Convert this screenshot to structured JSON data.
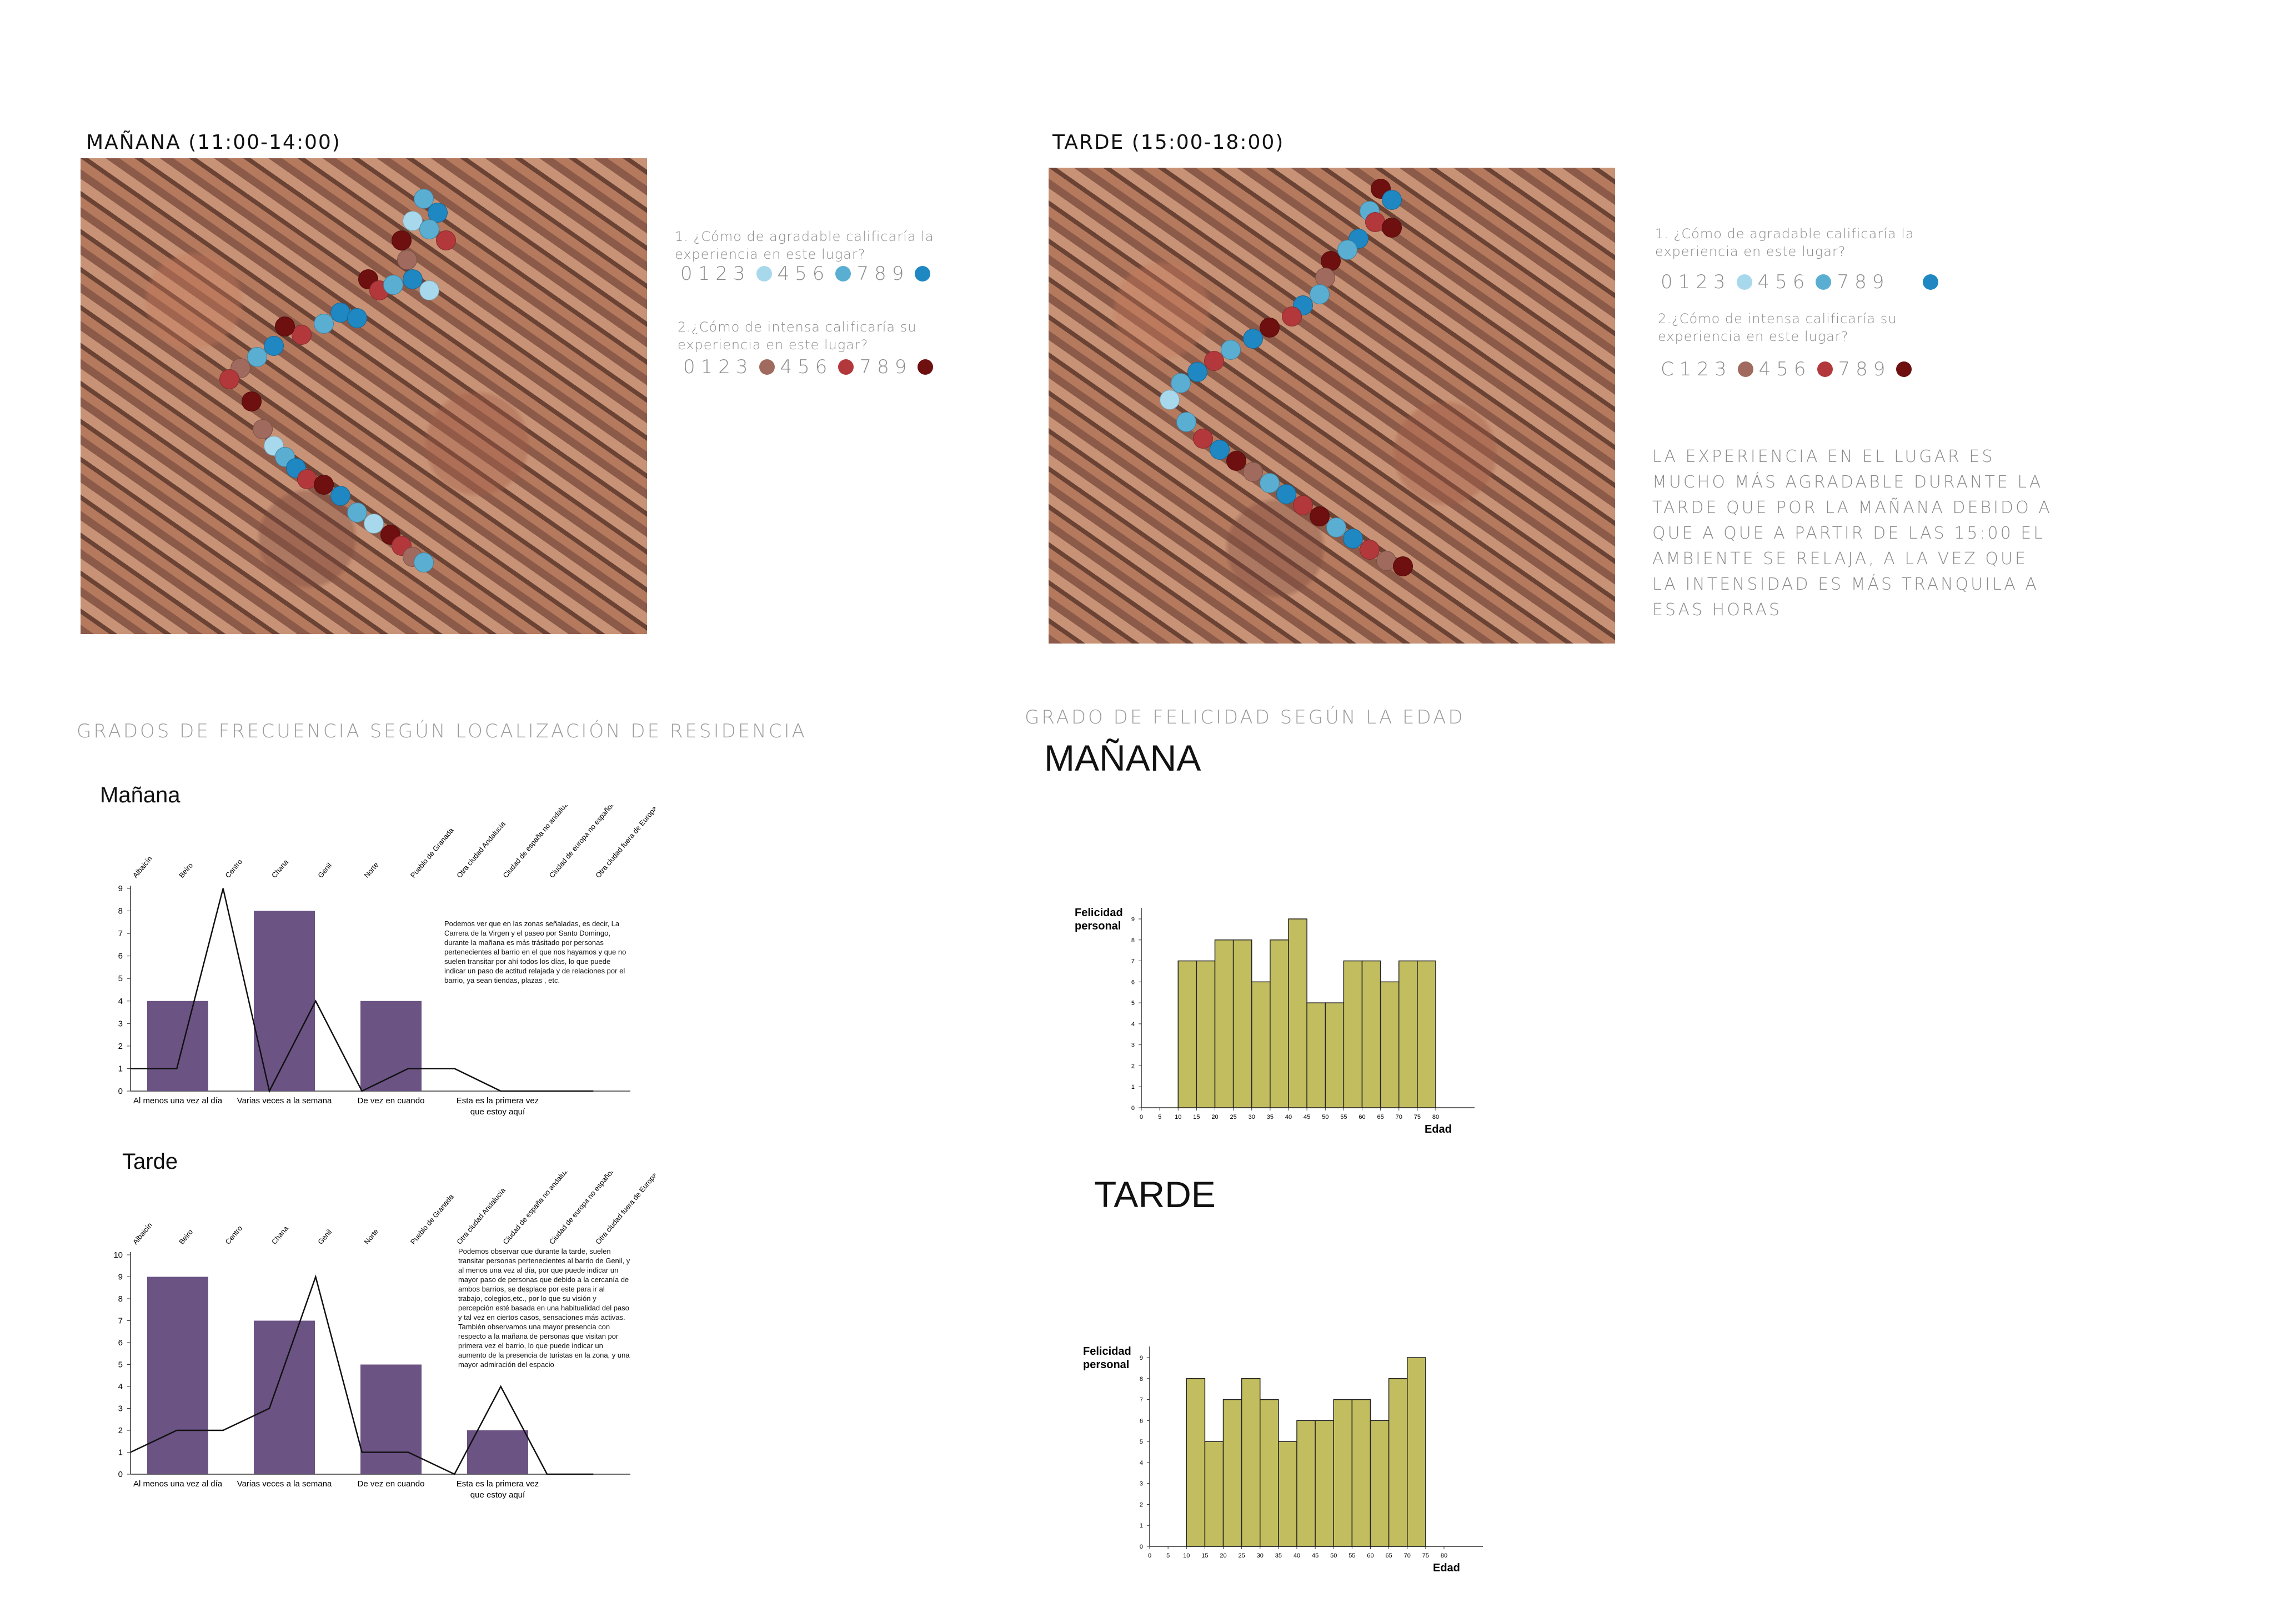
{
  "maps": {
    "morning_title": "MAÑANA (11:00-14:00)",
    "afternoon_title": "TARDE (15:00-18:00)"
  },
  "legend": {
    "q1": "1. ¿Cómo de agradable calificaría la experiencia en este lugar?",
    "q2": "2.¿Cómo de intensa calificaría su experiencia en este lugar?",
    "scale_a": "0123",
    "scale_b": "456",
    "scale_c": "789",
    "scale_a_right": "C123",
    "colors_agradable": [
      "#a8d8ec",
      "#5aaed2",
      "#1f87c2"
    ],
    "colors_intensa": [
      "#a06a5e",
      "#b2383b",
      "#6e0f10"
    ]
  },
  "note_text": "LA EXPERIENCIA EN EL LUGAR ES MUCHO MÁS AGRADABLE DURANTE LA TARDE QUE POR LA MAÑANA DEBIDO A QUE A QUE A PARTIR DE LAS 15:00 EL AMBIENTE SE RELAJA, A LA VEZ QUE LA INTENSIDAD ES MÁS TRANQUILA A ESAS HORAS",
  "section_left_title": "GRADOS DE FRECUENCIA SEGÚN LOCALIZACIÓN DE RESIDENCIA",
  "section_right_title": "GRADO DE FELICIDAD SEGÚN LA EDAD",
  "big_manana": "MAÑANA",
  "big_tarde": "TARDE",
  "chart_data": [
    {
      "type": "bar",
      "title": "Mañana",
      "categories": [
        "Al menos una vez al día",
        "Varias veces a la semana",
        "De vez en cuando",
        "Esta es la primera vez que estoy aquí"
      ],
      "values": [
        4,
        8,
        4,
        0
      ],
      "ylim": [
        0,
        9
      ],
      "yticks": [
        0,
        1,
        2,
        3,
        4,
        5,
        6,
        7,
        8,
        9
      ],
      "line": {
        "type": "line",
        "categories": [
          "Albaicín",
          "Beiro",
          "Centro",
          "Chana",
          "Genil",
          "Norte",
          "Pueblo de Granada",
          "Otra ciudad Andalucía",
          "Ciudad de españa no andaluza",
          "Ciudad de europa no española",
          "Otra ciudad fuera de Europa"
        ],
        "values": [
          1,
          1,
          9,
          0,
          4,
          0,
          1,
          1,
          0,
          0,
          0
        ]
      },
      "annotation": "Podemos ver que en las zonas señaladas, es decir, La Carrera de la Virgen y el paseo por Santo Domingo, durante la mañana es más trásitado por personas pertenecientes al barrio en el que nos hayamos y que no suelen transitar por ahí todos los días, lo que puede indicar un paso de actitud relajada y de relaciones por el barrio, ya sean tiendas, plazas , etc."
    },
    {
      "type": "bar",
      "title": "Tarde",
      "categories": [
        "Al menos una vez al día",
        "Varias veces a la semana",
        "De vez en cuando",
        "Esta es la primera vez que estoy aquí"
      ],
      "values": [
        9,
        7,
        5,
        2
      ],
      "ylim": [
        0,
        10
      ],
      "yticks": [
        0,
        1,
        2,
        3,
        4,
        5,
        6,
        7,
        8,
        9,
        10
      ],
      "line": {
        "type": "line",
        "categories": [
          "Albaicín",
          "Beiro",
          "Centro",
          "Chana",
          "Genil",
          "Norte",
          "Pueblo de Granada",
          "Otra ciudad Andalucía",
          "Ciudad de españa no andaluza",
          "Ciudad de europa no española",
          "Otra ciudad fuera de Europa"
        ],
        "values": [
          1,
          2,
          2,
          3,
          9,
          1,
          1,
          0,
          4,
          0,
          0
        ]
      },
      "annotation": "Podemos observar que durante la tarde, suelen transitar personas pertenecientes al barrio de Genil, y al menos una vez al día, por que puede indicar un mayor paso de personas que debido a la cercanía de ambos barrios, se desplace por este para ir al trabajo, colegios,etc., por lo que su visión y percepción esté basada en una habitualidad del paso y tal vez en ciertos casos, sensaciones más activas. También observamos una mayor presencia con respecto a la mañana de personas que visitan por primera vez el barrio, lo que puede indicar un aumento de la presencia de turistas en la zona, y una mayor admiración del espacio"
    },
    {
      "type": "bar",
      "title": "",
      "xlabel": "Edad",
      "ylabel": "Felicidad personal",
      "x_ticks": [
        0,
        5,
        10,
        15,
        20,
        25,
        30,
        35,
        40,
        45,
        50,
        55,
        60,
        65,
        70,
        75,
        80
      ],
      "bins_start": [
        10,
        15,
        20,
        25,
        30,
        35,
        40,
        45,
        50,
        55,
        60,
        65,
        70,
        75
      ],
      "values": [
        7,
        7,
        8,
        8,
        6,
        8,
        9,
        5,
        5,
        7,
        7,
        6,
        7,
        7
      ],
      "ylim": [
        0,
        9
      ],
      "yticks": [
        0,
        1,
        2,
        3,
        4,
        5,
        6,
        7,
        8,
        9
      ],
      "color": "#c2bd5e"
    },
    {
      "type": "bar",
      "title": "",
      "xlabel": "Edad",
      "ylabel": "Felicidad personal",
      "x_ticks": [
        0,
        5,
        10,
        15,
        20,
        25,
        30,
        35,
        40,
        45,
        50,
        55,
        60,
        65,
        70,
        75,
        80
      ],
      "bins_start": [
        10,
        15,
        20,
        25,
        30,
        35,
        40,
        45,
        50,
        55,
        60,
        65,
        70
      ],
      "values": [
        8,
        5,
        7,
        8,
        7,
        5,
        6,
        6,
        7,
        7,
        6,
        8,
        9
      ],
      "ylim": [
        0,
        9
      ],
      "yticks": [
        0,
        1,
        2,
        3,
        4,
        5,
        6,
        7,
        8,
        9
      ],
      "color": "#c2bd5e"
    }
  ]
}
